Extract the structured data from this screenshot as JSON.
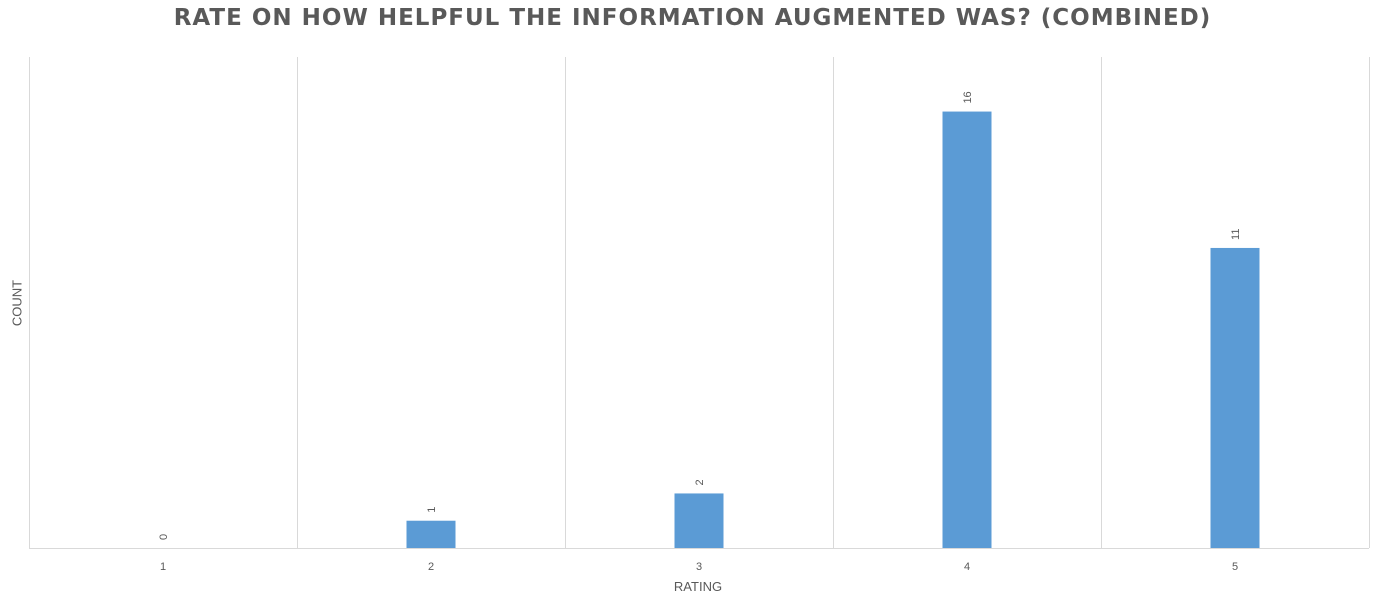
{
  "chart_data": {
    "type": "bar",
    "title": "RATE ON HOW HELPFUL THE INFORMATION AUGMENTED WAS? (COMBINED)",
    "xlabel": "RATING",
    "ylabel": "COUNT",
    "categories": [
      "1",
      "2",
      "3",
      "4",
      "5"
    ],
    "values": [
      0,
      1,
      2,
      16,
      11
    ],
    "ylim": [
      0,
      18
    ],
    "grid": "vertical",
    "data_labels": true,
    "bar_color": "#5B9BD5",
    "gridline_color": "#D9D9D9",
    "text_color": "#595959"
  }
}
